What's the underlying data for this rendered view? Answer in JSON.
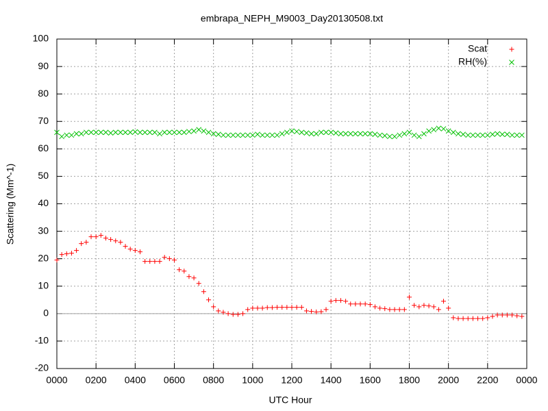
{
  "chart_data": {
    "type": "scatter",
    "title": "embrapa_NEPH_M9003_Day20130508.txt",
    "x_label": "UTC Hour",
    "y_label": "Scattering (Mm^-1)",
    "x": [
      0,
      0.25,
      0.5,
      0.75,
      1,
      1.25,
      1.5,
      1.75,
      2,
      2.25,
      2.5,
      2.75,
      3,
      3.25,
      3.5,
      3.75,
      4,
      4.25,
      4.5,
      4.75,
      5,
      5.25,
      5.5,
      5.75,
      6,
      6.25,
      6.5,
      6.75,
      7,
      7.25,
      7.5,
      7.75,
      8,
      8.25,
      8.5,
      8.75,
      9,
      9.25,
      9.5,
      9.75,
      10,
      10.25,
      10.5,
      10.75,
      11,
      11.25,
      11.5,
      11.75,
      12,
      12.25,
      12.5,
      12.75,
      13,
      13.25,
      13.5,
      13.75,
      14,
      14.25,
      14.5,
      14.75,
      15,
      15.25,
      15.5,
      15.75,
      16,
      16.25,
      16.5,
      16.75,
      17,
      17.25,
      17.5,
      17.75,
      18,
      18.25,
      18.5,
      18.75,
      19,
      19.25,
      19.5,
      19.75,
      20,
      20.25,
      20.5,
      20.75,
      21,
      21.25,
      21.5,
      21.75,
      22,
      22.25,
      22.5,
      22.75,
      23,
      23.25,
      23.5,
      23.75
    ],
    "series": [
      {
        "name": "Scat",
        "color": "#ff0000",
        "marker": "plus",
        "values": [
          19.5,
          21.5,
          21.8,
          22,
          23,
          25.5,
          26,
          28,
          28,
          28.5,
          27.5,
          27,
          26.5,
          26,
          24.5,
          23.5,
          23,
          22.5,
          19,
          19,
          19,
          19,
          20.5,
          20,
          19.5,
          16,
          15.5,
          13.5,
          13,
          11,
          8,
          5,
          2.5,
          1,
          0.5,
          0,
          -0.3,
          -0.3,
          0,
          1.5,
          2,
          2,
          2,
          2.2,
          2.2,
          2.3,
          2.3,
          2.3,
          2.3,
          2.3,
          2.3,
          1,
          0.8,
          0.6,
          0.7,
          1.5,
          4.5,
          4.8,
          4.8,
          4.5,
          3.5,
          3.5,
          3.5,
          3.5,
          3.3,
          2.5,
          2,
          1.8,
          1.5,
          1.5,
          1.5,
          1.5,
          6,
          3,
          2.5,
          3,
          2.8,
          2.5,
          1.5,
          4.5,
          2,
          -1.5,
          -1.8,
          -1.8,
          -1.8,
          -1.8,
          -1.8,
          -1.8,
          -1.5,
          -1,
          -0.5,
          -0.5,
          -0.5,
          -0.5,
          -0.8,
          -1
        ]
      },
      {
        "name": "RH(%)",
        "color": "#00c000",
        "marker": "cross",
        "values": [
          66,
          64.5,
          65,
          65,
          65.5,
          65.5,
          66,
          66,
          66,
          66,
          66,
          65.8,
          66,
          66,
          66,
          66,
          66.2,
          66,
          66,
          66,
          66,
          65.5,
          66,
          66,
          66,
          66,
          66,
          66.3,
          66.5,
          67,
          66.5,
          66,
          65.5,
          65.3,
          65,
          65,
          65,
          65,
          65,
          65,
          65,
          65.3,
          65,
          65,
          65,
          65,
          65.5,
          66,
          66.5,
          66.3,
          66,
          65.8,
          65.5,
          65.5,
          66,
          66,
          66,
          65.8,
          65.5,
          65.5,
          65.5,
          65.5,
          65.5,
          65.5,
          65.5,
          65.3,
          65,
          64.8,
          64.5,
          64.5,
          65,
          65.5,
          66,
          65,
          64.5,
          65.5,
          66.5,
          67,
          67.5,
          67.3,
          66.5,
          66,
          65.5,
          65.3,
          65,
          65,
          65,
          65,
          65,
          65.3,
          65.5,
          65.3,
          65.3,
          65,
          65,
          65
        ]
      }
    ],
    "xlim": [
      0,
      24
    ],
    "xticks": [
      {
        "value": 0,
        "label": "0000"
      },
      {
        "value": 2,
        "label": "0200"
      },
      {
        "value": 4,
        "label": "0400"
      },
      {
        "value": 6,
        "label": "0600"
      },
      {
        "value": 8,
        "label": "0800"
      },
      {
        "value": 10,
        "label": "1000"
      },
      {
        "value": 12,
        "label": "1200"
      },
      {
        "value": 14,
        "label": "1400"
      },
      {
        "value": 16,
        "label": "1600"
      },
      {
        "value": 18,
        "label": "1800"
      },
      {
        "value": 20,
        "label": "2000"
      },
      {
        "value": 22,
        "label": "2200"
      },
      {
        "value": 24,
        "label": "0000"
      }
    ],
    "ylim": [
      -20,
      100
    ],
    "yticks": [
      -20,
      -10,
      0,
      10,
      20,
      30,
      40,
      50,
      60,
      70,
      80,
      90,
      100
    ],
    "grid": true,
    "zero_line": true,
    "legend": "top right"
  }
}
